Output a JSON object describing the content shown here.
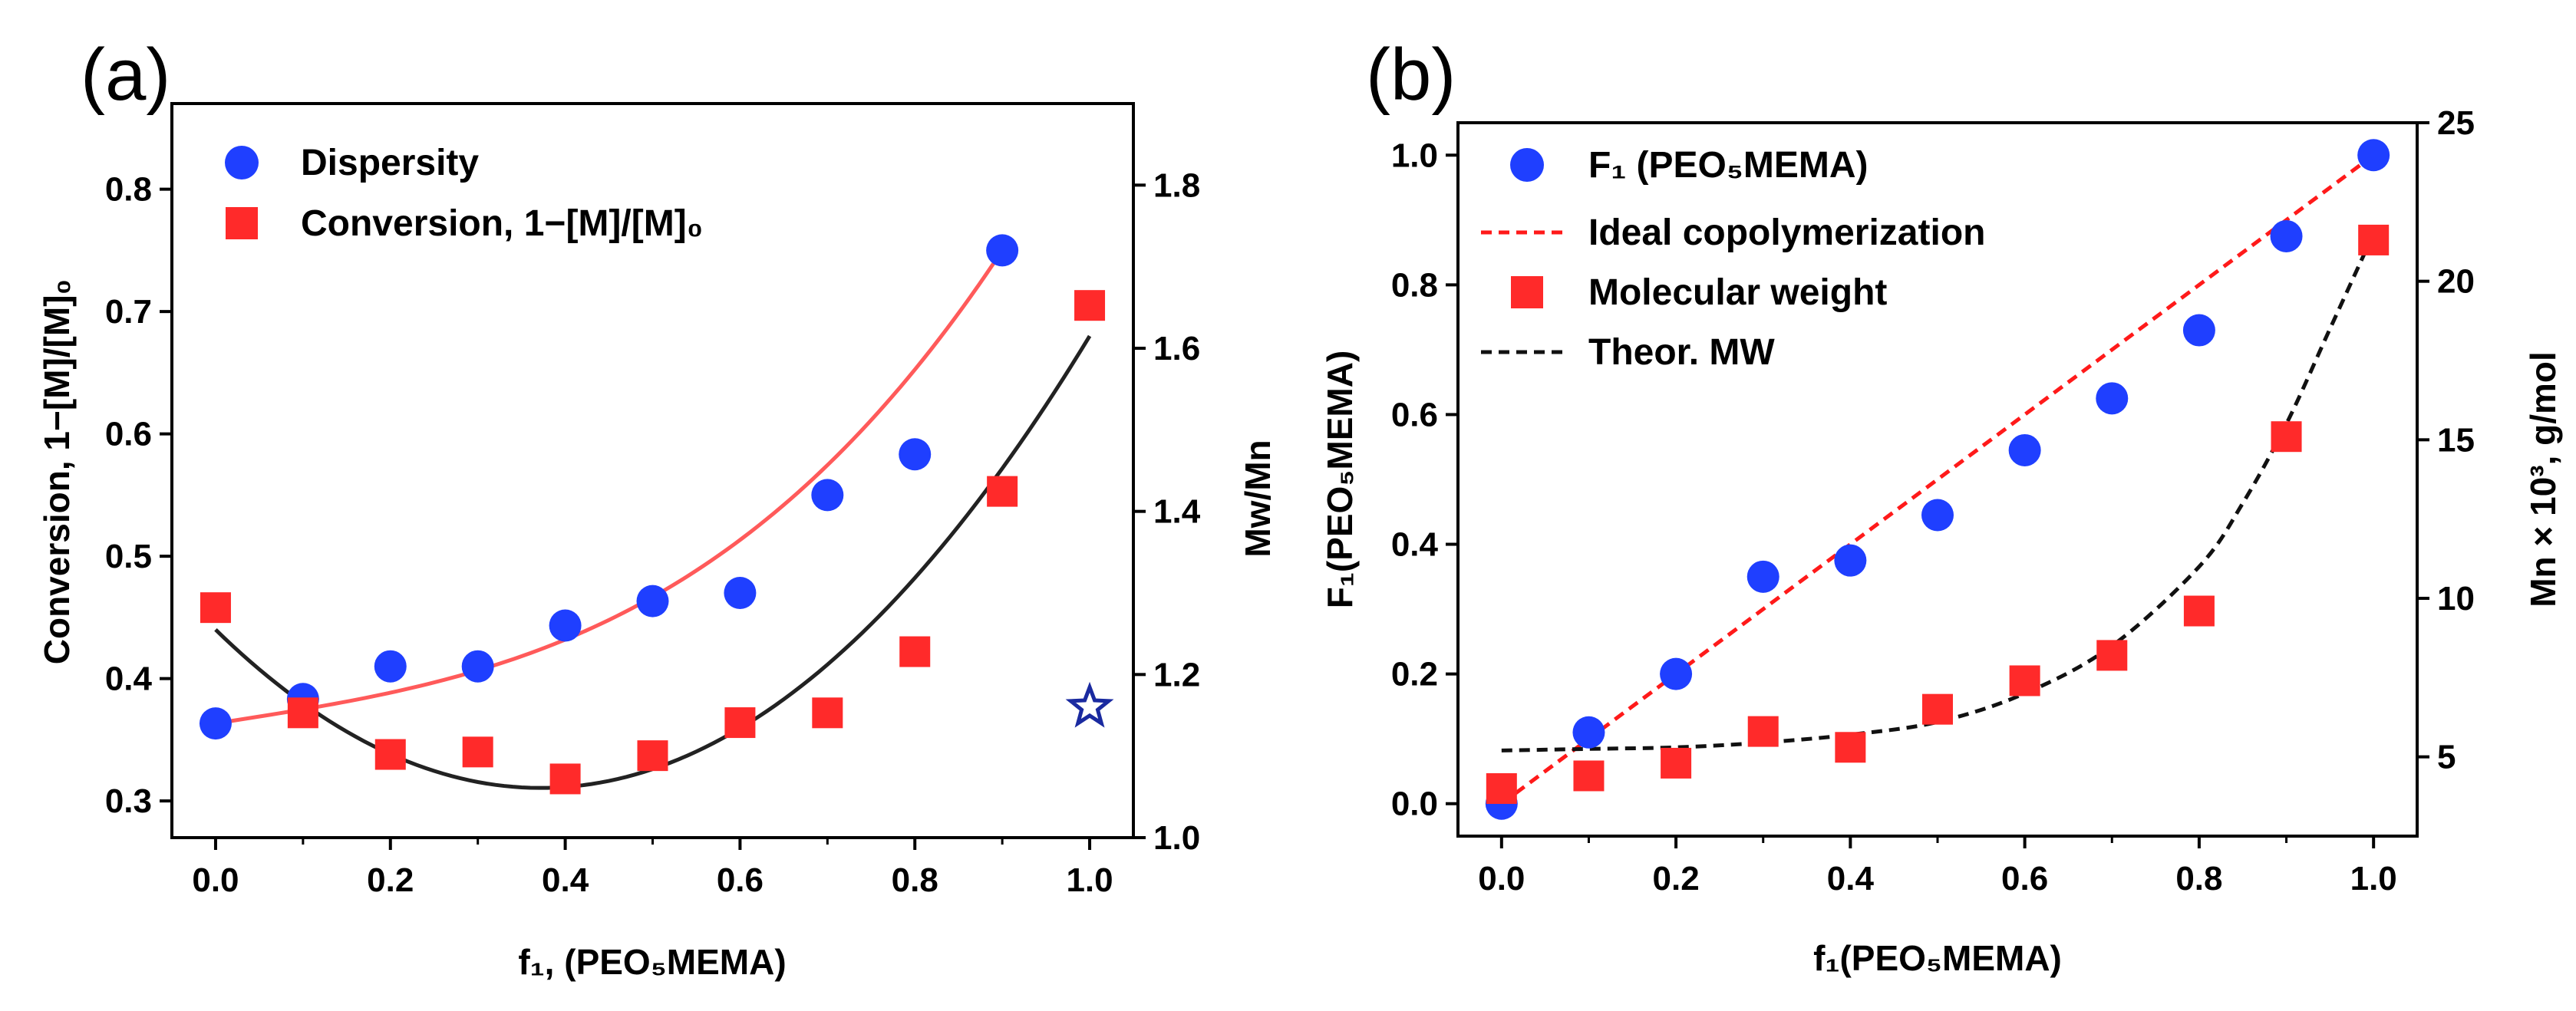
{
  "chart_data": [
    {
      "type": "scatter",
      "panel_label": "(a)",
      "xlabel": "f₁, (PEO₅MEMA)",
      "ylabel_left": "Conversion, 1−[M]/[M]₀",
      "ylabel_right": "Mw/Mn",
      "xlim": [
        -0.05,
        1.05
      ],
      "ylim_left": [
        0.27,
        0.87
      ],
      "ylim_right": [
        1.0,
        1.9
      ],
      "xticks": [
        "0.0",
        "0.2",
        "0.4",
        "0.6",
        "0.8",
        "1.0"
      ],
      "yticks_left": [
        "0.3",
        "0.4",
        "0.5",
        "0.6",
        "0.7",
        "0.8"
      ],
      "yticks_right": [
        "1.0",
        "1.2",
        "1.4",
        "1.6",
        "1.8"
      ],
      "legend": [
        "Dispersity",
        "Conversion, 1−[M]/[M]₀"
      ],
      "series": [
        {
          "name": "Dispersity",
          "axis": "right",
          "marker": "circle",
          "color": "#1f3fff",
          "x": [
            0.0,
            0.1,
            0.2,
            0.3,
            0.4,
            0.5,
            0.6,
            0.7,
            0.8,
            0.9
          ],
          "y": [
            1.14,
            1.17,
            1.21,
            1.21,
            1.26,
            1.29,
            1.3,
            1.42,
            1.47,
            1.72
          ]
        },
        {
          "name": "Conversion, 1−[M]/[M]₀",
          "axis": "left",
          "marker": "square",
          "color": "#ff2a2a",
          "x": [
            0.0,
            0.1,
            0.2,
            0.3,
            0.4,
            0.5,
            0.6,
            0.7,
            0.8,
            0.9,
            1.0
          ],
          "y": [
            0.458,
            0.372,
            0.338,
            0.34,
            0.318,
            0.337,
            0.364,
            0.372,
            0.422,
            0.553,
            0.705
          ]
        },
        {
          "name": "Dispersity fit",
          "axis": "right",
          "kind": "curve",
          "color": "#ff5a5a",
          "x": [
            0.0,
            0.3,
            0.6,
            0.9
          ],
          "y": [
            1.14,
            1.205,
            1.365,
            1.72
          ]
        },
        {
          "name": "Conversion fit",
          "axis": "left",
          "kind": "curve",
          "color": "#222222",
          "x": [
            0.0,
            0.44,
            1.0
          ],
          "y": [
            0.44,
            0.315,
            0.68
          ]
        }
      ],
      "annotations": [
        {
          "type": "star",
          "axis": "right",
          "x": 1.0,
          "y": 1.16,
          "color": "#1a2aa0"
        }
      ]
    },
    {
      "type": "scatter",
      "panel_label": "(b)",
      "xlabel": "f₁(PEO₅MEMA)",
      "ylabel_left": "F₁(PEO₅MEMA)",
      "ylabel_right": "Mn × 10³, g/mol",
      "xlim": [
        -0.05,
        1.05
      ],
      "ylim_left": [
        -0.05,
        1.05
      ],
      "ylim_right": [
        2.5,
        25
      ],
      "xticks": [
        "0.0",
        "0.2",
        "0.4",
        "0.6",
        "0.8",
        "1.0"
      ],
      "yticks_left": [
        "0.0",
        "0.2",
        "0.4",
        "0.6",
        "0.8",
        "1.0"
      ],
      "yticks_right": [
        "5",
        "10",
        "15",
        "20",
        "25"
      ],
      "legend": [
        "F₁ (PEO₅MEMA)",
        "Ideal copolymerization",
        "Molecular weight",
        "Theor. MW"
      ],
      "series": [
        {
          "name": "F₁ (PEO₅MEMA)",
          "axis": "left",
          "marker": "circle",
          "color": "#1f3fff",
          "x": [
            0.0,
            0.1,
            0.2,
            0.3,
            0.4,
            0.5,
            0.6,
            0.7,
            0.8,
            0.9,
            1.0
          ],
          "y": [
            0.0,
            0.11,
            0.2,
            0.35,
            0.375,
            0.445,
            0.545,
            0.625,
            0.73,
            0.875,
            1.0
          ]
        },
        {
          "name": "Ideal copolymerization",
          "axis": "left",
          "kind": "dashed-line",
          "color": "#ff1a1a",
          "x": [
            0.0,
            1.0
          ],
          "y": [
            0.0,
            1.0
          ]
        },
        {
          "name": "Molecular weight",
          "axis": "right",
          "marker": "square",
          "color": "#ff2a2a",
          "x": [
            0.0,
            0.1,
            0.2,
            0.3,
            0.4,
            0.5,
            0.6,
            0.7,
            0.8,
            0.9,
            1.0
          ],
          "y": [
            4.0,
            4.4,
            4.8,
            5.8,
            5.3,
            6.5,
            7.4,
            8.2,
            9.6,
            15.1,
            21.3
          ]
        },
        {
          "name": "Theor. MW",
          "axis": "right",
          "kind": "dashed-curve",
          "color": "#111111",
          "x": [
            0.0,
            0.1,
            0.2,
            0.3,
            0.4,
            0.5,
            0.6,
            0.7,
            0.8,
            0.85,
            0.9,
            0.95,
            1.0
          ],
          "y": [
            5.2,
            5.25,
            5.3,
            5.45,
            5.7,
            6.1,
            7.0,
            8.5,
            11.0,
            13.0,
            15.5,
            18.5,
            21.5
          ]
        }
      ]
    }
  ]
}
